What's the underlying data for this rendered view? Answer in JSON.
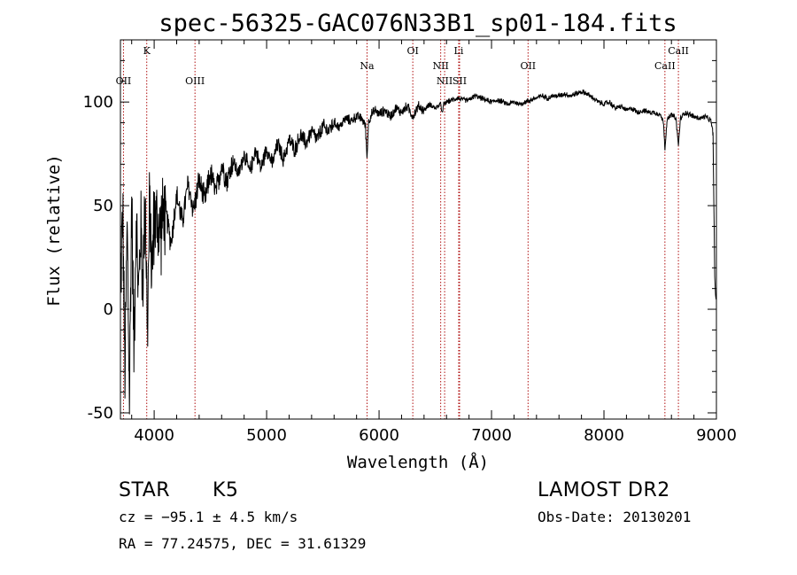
{
  "chart_data": {
    "type": "line",
    "title": "spec-56325-GAC076N33B1_sp01-184.fits",
    "xlabel": "Wavelength (Å)",
    "ylabel": "Flux (relative)",
    "xlim": [
      3700,
      9000
    ],
    "ylim": [
      -53,
      130
    ],
    "x_ticks": [
      4000,
      5000,
      6000,
      7000,
      8000,
      9000
    ],
    "y_ticks": [
      -50,
      0,
      50,
      100
    ],
    "grid": false,
    "series": [
      {
        "name": "flux",
        "color": "#000000",
        "x": [
          3700,
          3720,
          3740,
          3760,
          3780,
          3800,
          3820,
          3840,
          3860,
          3880,
          3900,
          3920,
          3940,
          3960,
          3980,
          4000,
          4050,
          4100,
          4150,
          4200,
          4250,
          4300,
          4350,
          4400,
          4450,
          4500,
          4550,
          4600,
          4650,
          4700,
          4750,
          4800,
          4850,
          4900,
          4950,
          5000,
          5050,
          5100,
          5150,
          5200,
          5250,
          5300,
          5350,
          5400,
          5450,
          5500,
          5550,
          5600,
          5650,
          5700,
          5750,
          5800,
          5850,
          5880,
          5893,
          5905,
          5930,
          5970,
          6000,
          6050,
          6100,
          6150,
          6200,
          6250,
          6300,
          6350,
          6400,
          6450,
          6500,
          6550,
          6563,
          6575,
          6600,
          6650,
          6700,
          6750,
          6800,
          6850,
          6900,
          6950,
          7000,
          7050,
          7100,
          7150,
          7200,
          7250,
          7300,
          7350,
          7400,
          7450,
          7500,
          7550,
          7600,
          7650,
          7700,
          7750,
          7800,
          7850,
          7900,
          7950,
          8000,
          8050,
          8100,
          8150,
          8200,
          8250,
          8300,
          8350,
          8400,
          8450,
          8500,
          8530,
          8542,
          8560,
          8600,
          8640,
          8662,
          8680,
          8720,
          8760,
          8800,
          8850,
          8900,
          8950,
          8970,
          8985,
          8995
        ],
        "values": [
          10,
          48,
          -32,
          40,
          -44,
          55,
          -18,
          46,
          5,
          40,
          12,
          58,
          -12,
          52,
          18,
          45,
          38,
          48,
          32,
          55,
          42,
          60,
          48,
          62,
          52,
          66,
          56,
          70,
          62,
          72,
          65,
          75,
          66,
          77,
          68,
          78,
          70,
          80,
          72,
          82,
          77,
          84,
          80,
          86,
          82,
          88,
          86,
          90,
          88,
          92,
          91,
          93,
          92,
          88,
          72,
          90,
          94,
          96,
          94,
          96,
          93,
          97,
          95,
          98,
          93,
          98,
          96,
          99,
          97,
          99,
          94,
          99,
          100,
          101,
          102,
          101,
          101,
          103,
          102,
          101,
          100,
          101,
          100,
          99,
          100,
          99,
          100,
          101,
          102,
          103,
          102,
          103,
          103,
          104,
          103,
          104,
          105,
          104,
          102,
          100,
          99,
          100,
          97,
          98,
          96,
          97,
          95,
          96,
          95,
          95,
          94,
          90,
          77,
          91,
          94,
          92,
          79,
          92,
          95,
          94,
          93,
          92,
          93,
          91,
          85,
          15,
          5
        ]
      }
    ],
    "line_markers": [
      {
        "label": "OII",
        "wavelength": 3727,
        "row": 3
      },
      {
        "label": "K",
        "wavelength": 3934,
        "row": 1
      },
      {
        "label": "OIII",
        "wavelength": 4363,
        "row": 3
      },
      {
        "label": "Na",
        "wavelength": 5893,
        "row": 2
      },
      {
        "label": "OI",
        "wavelength": 6300,
        "row": 1
      },
      {
        "label": "NII",
        "wavelength": 6548,
        "row": 2
      },
      {
        "label": "NII",
        "wavelength": 6583,
        "row": 3
      },
      {
        "label": "Li",
        "wavelength": 6708,
        "row": 1
      },
      {
        "label": "SII",
        "wavelength": 6716,
        "row": 3
      },
      {
        "label": "OII",
        "wavelength": 7325,
        "row": 2
      },
      {
        "label": "CaII",
        "wavelength": 8542,
        "row": 2
      },
      {
        "label": "CaII",
        "wavelength": 8662,
        "row": 1
      }
    ]
  },
  "info": {
    "class_label": "STAR",
    "subclass": "K5",
    "cz": "cz = −95.1 ± 4.5 km/s",
    "coords": "RA =  77.24575, DEC =  31.61329",
    "survey": "LAMOST DR2",
    "obs_date": "Obs-Date: 20130201"
  }
}
